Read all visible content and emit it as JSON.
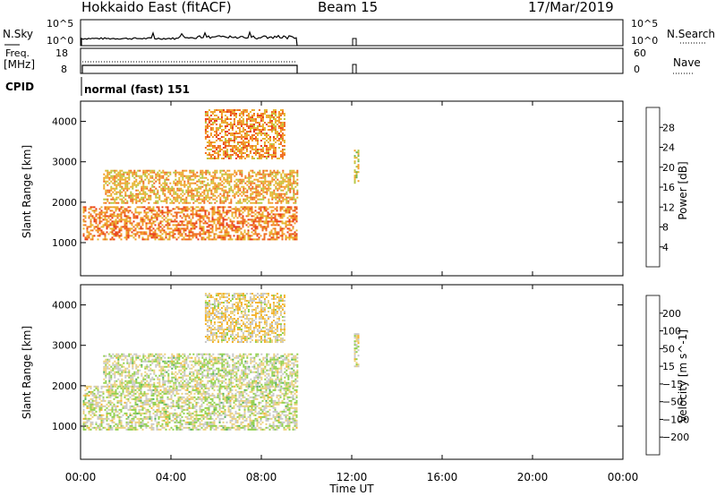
{
  "header": {
    "station": "Hokkaido East (fitACF)",
    "beam": "Beam 15",
    "date": "17/Mar/2019"
  },
  "panels": {
    "nsky": {
      "label": "N.Sky",
      "ticks": [
        "10^5",
        "10^0"
      ],
      "right_ticks": [
        "10^5",
        "10^0"
      ],
      "right_label": "N.Search"
    },
    "freq": {
      "label_line1": "Freq.",
      "label_line2": "[MHz]",
      "ticks": [
        "18",
        "8"
      ],
      "right_ticks": [
        "60",
        "0"
      ],
      "right_label": "Nave"
    },
    "cpid": {
      "label": "CPID",
      "text": "normal (fast) 151"
    }
  },
  "chart_data": [
    {
      "type": "heatmap",
      "title": "",
      "quantity": "Power",
      "colorbar_label": "Power [dB]",
      "colorbar_ticks": [
        "28",
        "24",
        "20",
        "16",
        "12",
        "8",
        "4"
      ],
      "colorbar_range": [
        0,
        32
      ],
      "ylabel": "Slant Range [km]",
      "xlabel": "",
      "yticks": [
        "4000",
        "3000",
        "2000",
        "1000"
      ],
      "ylim": [
        180,
        4500
      ],
      "xlim_hours": [
        0,
        24
      ],
      "colors": [
        "#0000ff",
        "#1d3fbf",
        "#2f6aa3",
        "#3e8f78",
        "#6fb34b",
        "#b4c53c",
        "#e4b62e",
        "#f39c28",
        "#ef6a1f",
        "#e83a16",
        "#e00d0d"
      ],
      "bands": [
        {
          "name": "main band",
          "x_start": 0.1,
          "x_end": 9.6,
          "y_start": 1100,
          "y_end": 1900,
          "level": 24
        },
        {
          "name": "upper band",
          "x_start": 1.0,
          "x_end": 9.6,
          "y_start": 2000,
          "y_end": 2800,
          "level": 21
        },
        {
          "name": "high echoes",
          "x_start": 5.5,
          "x_end": 9.0,
          "y_start": 3100,
          "y_end": 4300,
          "level": 23
        },
        {
          "name": "12 UT burst",
          "x_start": 12.1,
          "x_end": 12.3,
          "y_start": 2500,
          "y_end": 3300,
          "level": 18
        }
      ]
    },
    {
      "type": "heatmap",
      "title": "",
      "quantity": "Velocity",
      "colorbar_label": "Velocity [m s^-1]",
      "colorbar_ticks": [
        "200",
        "100",
        "50",
        "15",
        "−15",
        "−50",
        "−100",
        "−200"
      ],
      "colorbar_range": [
        -250,
        250
      ],
      "ylabel": "Slant Range [km]",
      "xlabel": "Time UT",
      "yticks": [
        "4000",
        "3000",
        "2000",
        "1000"
      ],
      "ylim": [
        180,
        4500
      ],
      "xlim_hours": [
        0,
        24
      ],
      "xticks": [
        "00:00",
        "04:00",
        "08:00",
        "12:00",
        "16:00",
        "20:00",
        "00:00"
      ],
      "colors": [
        "#e00000",
        "#f04a10",
        "#f58a1e",
        "#f4b22a",
        "#ecd07a",
        "#c8c8c8",
        "#8fd04a",
        "#4fae5a",
        "#3d7f8a",
        "#2a56b0",
        "#1a2fc8"
      ],
      "bands": [
        {
          "name": "main band",
          "x_start": 0.1,
          "x_end": 9.6,
          "y_start": 900,
          "y_end": 2000,
          "level": 0
        },
        {
          "name": "upper band",
          "x_start": 1.0,
          "x_end": 9.6,
          "y_start": 2000,
          "y_end": 2800,
          "level": 0
        },
        {
          "name": "high echoes",
          "x_start": 5.5,
          "x_end": 9.0,
          "y_start": 3100,
          "y_end": 4300,
          "level": -40
        },
        {
          "name": "12 UT burst",
          "x_start": 12.1,
          "x_end": 12.3,
          "y_start": 2500,
          "y_end": 3300,
          "level": -20
        }
      ]
    }
  ]
}
